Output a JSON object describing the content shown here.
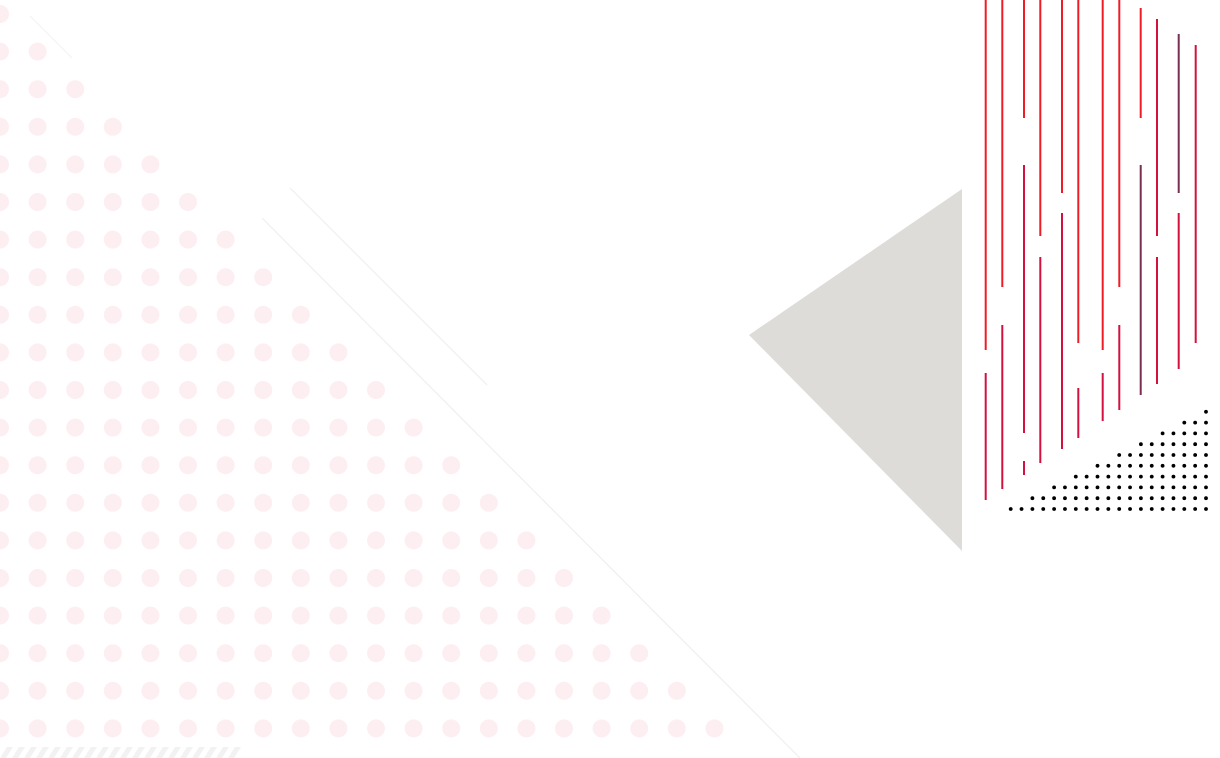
{
  "colors": {
    "background": "#ffffff",
    "pink_dots": "#fdeef1",
    "gray_triangle": "#dddcd9",
    "red_lines": "#ee1c25",
    "crimson_lines": "#d4103f",
    "plum_lines": "#7a2f50",
    "black_dots": "#000000",
    "faint_lines": "#eeeeee",
    "stripes": "#f2f2f2"
  }
}
